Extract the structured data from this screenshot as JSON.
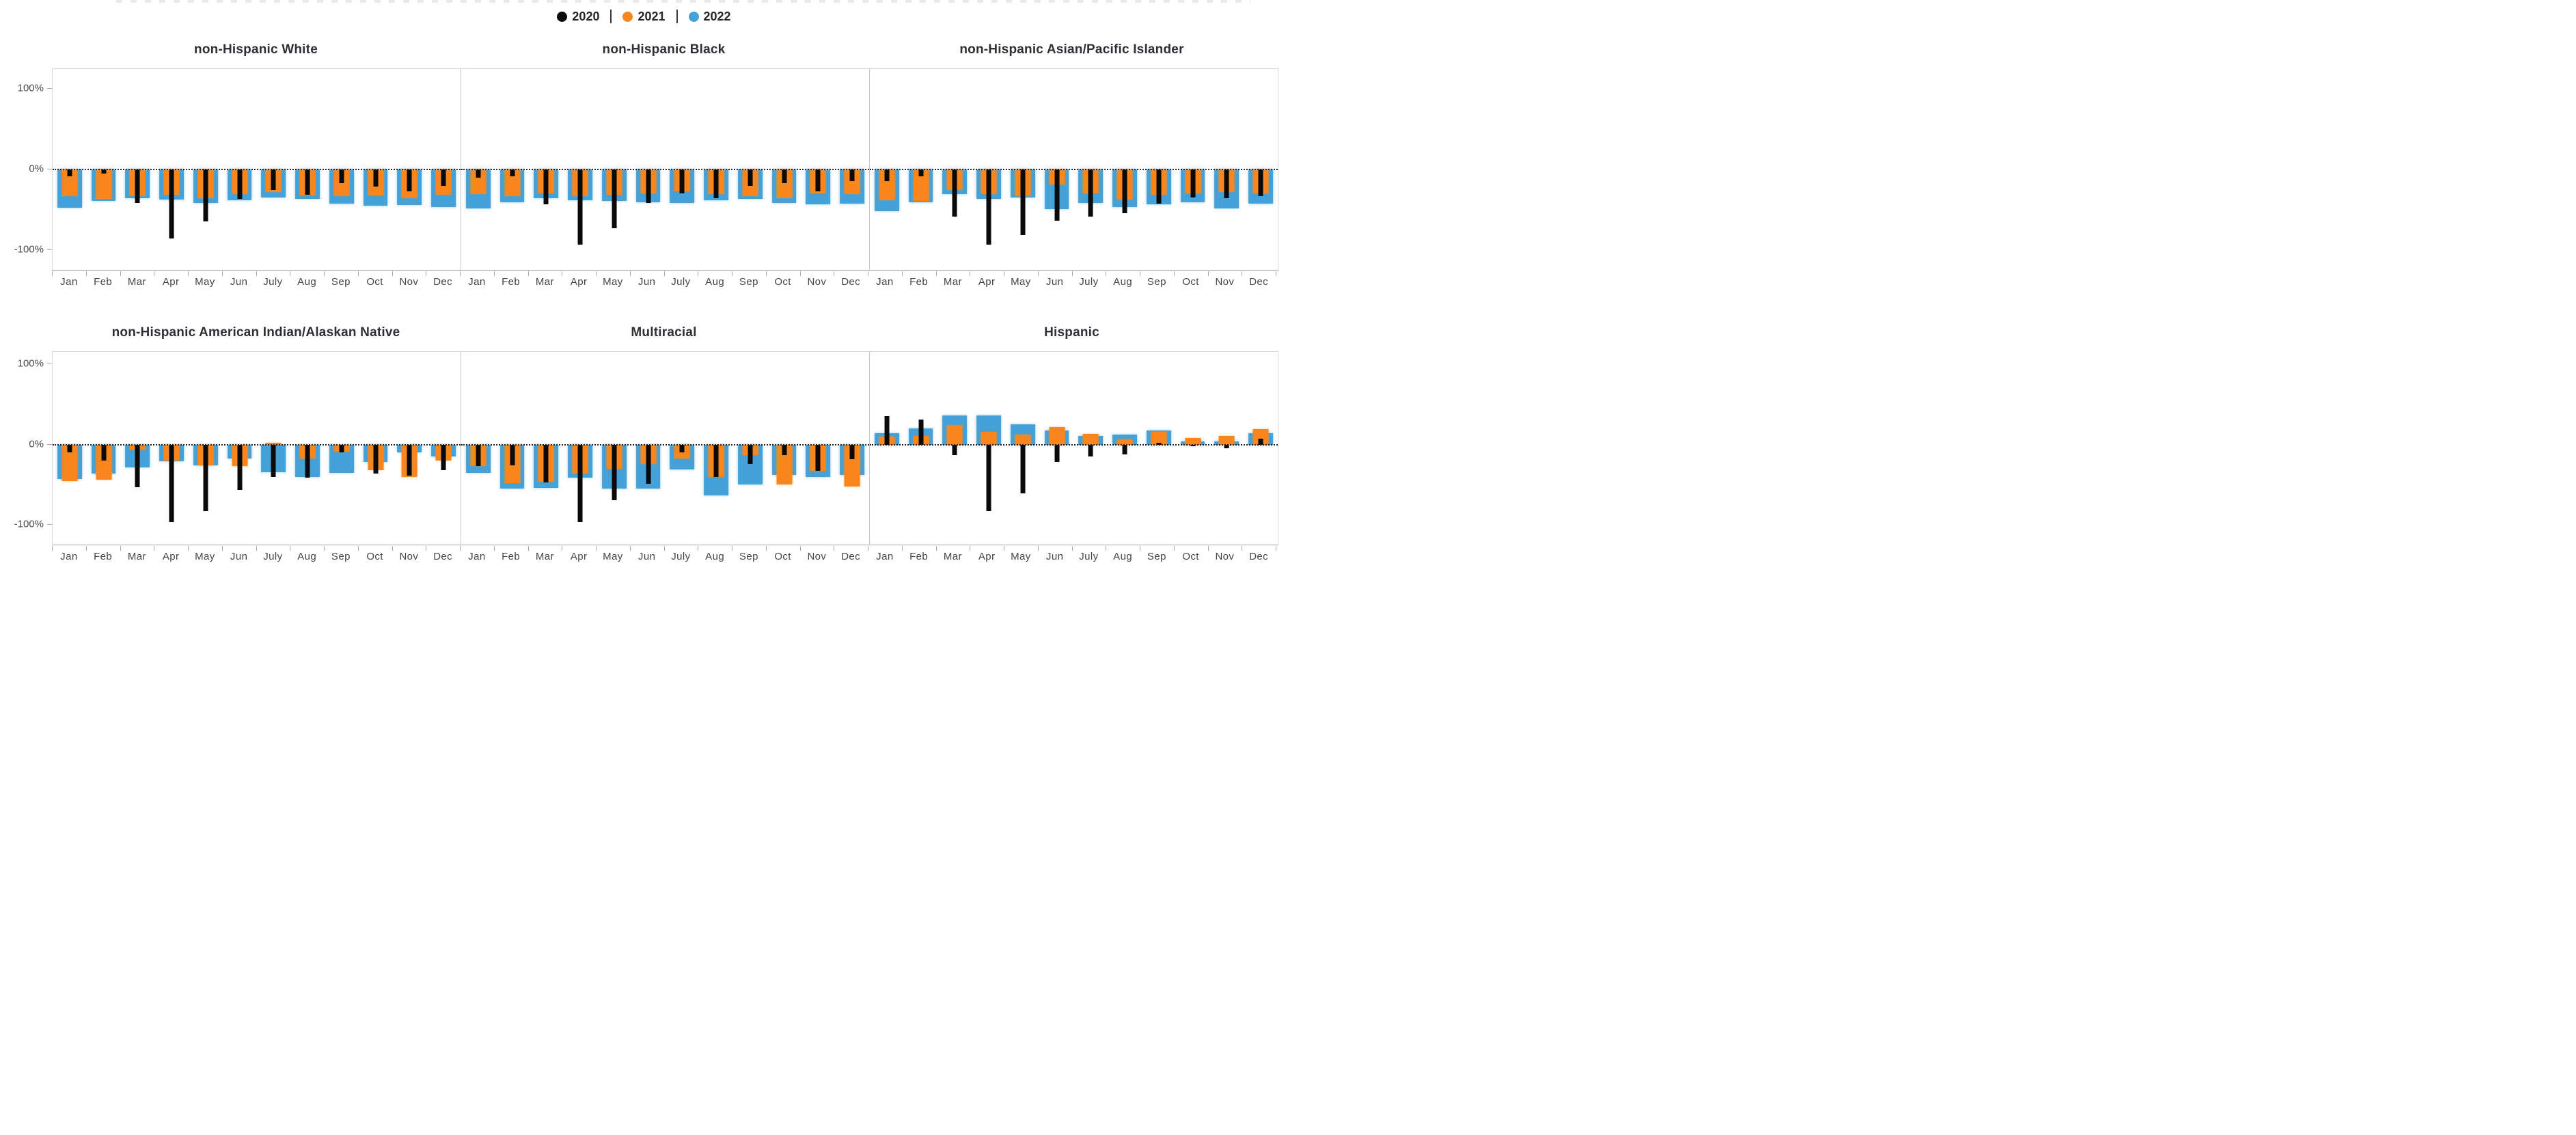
{
  "figure": {
    "name": "monthly-percent-change-by-race-ethnicity"
  },
  "legend": {
    "separator": "|",
    "items": [
      {
        "label": "2020",
        "color": "#0a0a0a"
      },
      {
        "label": "2021",
        "color": "#f9861c"
      },
      {
        "label": "2022",
        "color": "#44a2d8"
      }
    ]
  },
  "y_axis": {
    "tick_labels": [
      "100%",
      "0%",
      "-100%"
    ],
    "tick_values": [
      100,
      0,
      -100
    ]
  },
  "months": [
    "Jan",
    "Feb",
    "Mar",
    "Apr",
    "May",
    "Jun",
    "July",
    "Aug",
    "Sep",
    "Oct",
    "Nov",
    "Dec"
  ],
  "colors": {
    "bar_2020": "#0a0a0a",
    "bar_2021": "#f9861c",
    "bar_2022": "#44a2d8",
    "zero_line": "#262626",
    "axis_line": "#a8a8a8",
    "panel_border": "#d9d9d9",
    "panel_separator": "#c4c4c4",
    "tick_label": "#4a4a4a",
    "title_text": "#2f2f36"
  },
  "chart_data": [
    {
      "type": "bar",
      "title": "non-Hispanic White",
      "row": 0,
      "categories": [
        "Jan",
        "Feb",
        "Mar",
        "Apr",
        "May",
        "Jun",
        "July",
        "Aug",
        "Sep",
        "Oct",
        "Nov",
        "Dec"
      ],
      "ylim": [
        -126,
        125
      ],
      "ylabel": "",
      "zero_gridline": "dotted",
      "series": [
        {
          "name": "2020",
          "color": "#0a0a0a",
          "values": [
            -8,
            -5,
            -41,
            -85,
            -64,
            -36,
            -25,
            -31,
            -17,
            -21,
            -27,
            -20
          ]
        },
        {
          "name": "2021",
          "color": "#f9861c",
          "values": [
            -33,
            -36,
            -33,
            -31,
            -35,
            -30,
            -28,
            -32,
            -33,
            -32,
            -35,
            -31
          ]
        },
        {
          "name": "2022",
          "color": "#44a2d8",
          "values": [
            -47,
            -39,
            -35,
            -37,
            -41,
            -38,
            -34,
            -36,
            -42,
            -45,
            -44,
            -46
          ]
        }
      ]
    },
    {
      "type": "bar",
      "title": "non-Hispanic Black",
      "row": 0,
      "categories": [
        "Jan",
        "Feb",
        "Mar",
        "Apr",
        "May",
        "Jun",
        "July",
        "Aug",
        "Sep",
        "Oct",
        "Nov",
        "Dec"
      ],
      "ylim": [
        -126,
        125
      ],
      "ylabel": "",
      "zero_gridline": "dotted",
      "series": [
        {
          "name": "2020",
          "color": "#0a0a0a",
          "values": [
            -10,
            -8,
            -43,
            -93,
            -73,
            -41,
            -29,
            -35,
            -20,
            -17,
            -27,
            -14
          ]
        },
        {
          "name": "2021",
          "color": "#f9861c",
          "values": [
            -30,
            -33,
            -29,
            -33,
            -31,
            -29,
            -27,
            -30,
            -33,
            -35,
            -29,
            -30
          ]
        },
        {
          "name": "2022",
          "color": "#44a2d8",
          "values": [
            -48,
            -40,
            -35,
            -38,
            -39,
            -40,
            -41,
            -38,
            -36,
            -41,
            -43,
            -42
          ]
        }
      ]
    },
    {
      "type": "bar",
      "title": "non-Hispanic Asian/Pacific Islander",
      "row": 0,
      "categories": [
        "Jan",
        "Feb",
        "Mar",
        "Apr",
        "May",
        "Jun",
        "July",
        "Aug",
        "Sep",
        "Oct",
        "Nov",
        "Dec"
      ],
      "ylim": [
        -126,
        125
      ],
      "ylabel": "",
      "zero_gridline": "dotted",
      "series": [
        {
          "name": "2020",
          "color": "#0a0a0a",
          "values": [
            -14,
            -8,
            -58,
            -93,
            -81,
            -63,
            -58,
            -54,
            -42,
            -34,
            -35,
            -33
          ]
        },
        {
          "name": "2021",
          "color": "#f9861c",
          "values": [
            -38,
            -39,
            -25,
            -30,
            -33,
            -18,
            -29,
            -37,
            -31,
            -29,
            -28,
            -29
          ]
        },
        {
          "name": "2022",
          "color": "#44a2d8",
          "values": [
            -51,
            -40,
            -30,
            -36,
            -34,
            -49,
            -41,
            -46,
            -43,
            -40,
            -48,
            -42
          ]
        }
      ]
    },
    {
      "type": "bar",
      "title": "non-Hispanic American Indian/Alaskan Native",
      "row": 1,
      "categories": [
        "Jan",
        "Feb",
        "Mar",
        "Apr",
        "May",
        "Jun",
        "July",
        "Aug",
        "Sep",
        "Oct",
        "Nov",
        "Dec"
      ],
      "ylim": [
        -126,
        115
      ],
      "ylabel": "",
      "zero_gridline": "dotted",
      "series": [
        {
          "name": "2020",
          "color": "#0a0a0a",
          "values": [
            -10,
            -20,
            -53,
            -96,
            -83,
            -56,
            -40,
            -41,
            -10,
            -36,
            -39,
            -32
          ]
        },
        {
          "name": "2021",
          "color": "#f9861c",
          "values": [
            -45,
            -44,
            -6,
            -20,
            -26,
            -27,
            2,
            -17,
            -9,
            -32,
            -40,
            -20
          ]
        },
        {
          "name": "2022",
          "color": "#44a2d8",
          "values": [
            -43,
            -36,
            -28,
            -21,
            -26,
            -17,
            -34,
            -40,
            -35,
            -22,
            -10,
            -15
          ]
        }
      ]
    },
    {
      "type": "bar",
      "title": "Multiracial",
      "row": 1,
      "categories": [
        "Jan",
        "Feb",
        "Mar",
        "Apr",
        "May",
        "Jun",
        "July",
        "Aug",
        "Sep",
        "Oct",
        "Nov",
        "Dec"
      ],
      "ylim": [
        -126,
        115
      ],
      "ylabel": "",
      "zero_gridline": "dotted",
      "series": [
        {
          "name": "2020",
          "color": "#0a0a0a",
          "values": [
            -27,
            -26,
            -47,
            -96,
            -69,
            -49,
            -10,
            -40,
            -24,
            -13,
            -33,
            -18
          ]
        },
        {
          "name": "2021",
          "color": "#f9861c",
          "values": [
            -27,
            -48,
            -46,
            -36,
            -30,
            -24,
            -17,
            -40,
            -13,
            -50,
            -33,
            -52
          ]
        },
        {
          "name": "2022",
          "color": "#44a2d8",
          "values": [
            -35,
            -55,
            -54,
            -41,
            -55,
            -55,
            -31,
            -63,
            -50,
            -38,
            -40,
            -38
          ]
        }
      ]
    },
    {
      "type": "bar",
      "title": "Hispanic",
      "row": 1,
      "categories": [
        "Jan",
        "Feb",
        "Mar",
        "Apr",
        "May",
        "Jun",
        "July",
        "Aug",
        "Sep",
        "Oct",
        "Nov",
        "Dec"
      ],
      "ylim": [
        -126,
        115
      ],
      "ylabel": "",
      "zero_gridline": "dotted",
      "series": [
        {
          "name": "2020",
          "color": "#0a0a0a",
          "values": [
            35,
            31,
            -13,
            -83,
            -61,
            -22,
            -15,
            -12,
            2,
            -2,
            -5,
            7
          ]
        },
        {
          "name": "2021",
          "color": "#f9861c",
          "values": [
            10,
            11,
            24,
            16,
            12,
            22,
            13,
            6,
            16,
            8,
            11,
            19
          ]
        },
        {
          "name": "2022",
          "color": "#44a2d8",
          "values": [
            14,
            20,
            36,
            36,
            25,
            17,
            11,
            12,
            17,
            4,
            4,
            14
          ]
        }
      ]
    }
  ]
}
